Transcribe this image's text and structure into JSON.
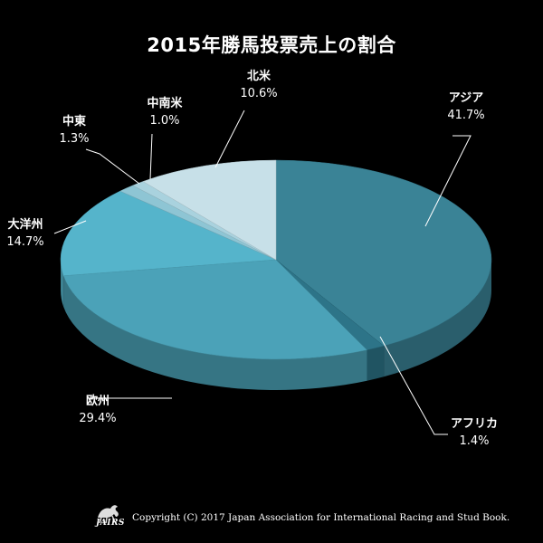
{
  "chart_data": {
    "type": "pie",
    "title": "2015年勝馬投票売上の割合",
    "slices": [
      {
        "label": "アジア",
        "value": 41.7,
        "display": "41.7%",
        "color": "#3a8396"
      },
      {
        "label": "アフリカ",
        "value": 1.4,
        "display": "1.4%",
        "color": "#2d7488"
      },
      {
        "label": "欧州",
        "value": 29.4,
        "display": "29.4%",
        "color": "#4ba2b8"
      },
      {
        "label": "大洋州",
        "value": 14.7,
        "display": "14.7%",
        "color": "#55b4cb"
      },
      {
        "label": "中東",
        "value": 1.3,
        "display": "1.3%",
        "color": "#8ec5d4"
      },
      {
        "label": "中南米",
        "value": 1.0,
        "display": "1.0%",
        "color": "#a9d2de"
      },
      {
        "label": "北米",
        "value": 10.6,
        "display": "10.6%",
        "color": "#c7e0e8"
      }
    ]
  },
  "footer": {
    "logo_text": "JAIRS",
    "copyright": "Copyright (C) 2017 Japan Association for International Racing and Stud Book."
  }
}
